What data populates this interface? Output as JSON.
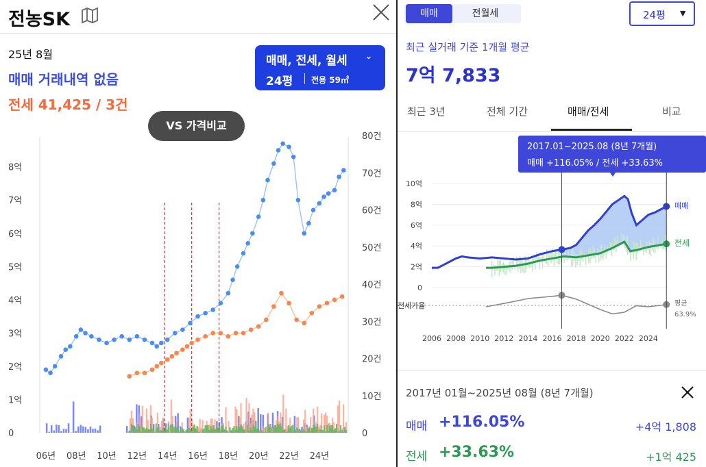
{
  "left": {
    "title": "전농SK",
    "date": "25년 8월",
    "sale_status": "매매 거래내역 없음",
    "jeonse_summary": "전세 41,425 / 3건",
    "type_selector": {
      "types": "매매, 전세, 월세",
      "size": "24평",
      "area": "전용 59㎡"
    },
    "compare_button": "VS 가격비교"
  },
  "right": {
    "trade_tabs": [
      "매매",
      "전월세"
    ],
    "size_select": "24평",
    "avg_label": "최근 실거래 기준 1개월 평균",
    "avg_value": "7억 7,833",
    "period_tabs": [
      "최근 3년",
      "전체 기간",
      "매매/전세",
      "비교"
    ],
    "tooltip": {
      "range": "2017.01~2025.08 (8년 7개월)",
      "values": "매매 +116.05%  /  전세 +33.63%"
    },
    "summary": {
      "range": "2017년 01월~2025년 08월 (8년 7개월)",
      "sale": {
        "label": "매매",
        "pct": "+116.05%",
        "amount": "+4억 1,808"
      },
      "jeonse": {
        "label": "전세",
        "pct": "+33.63%",
        "amount": "+1억 425"
      }
    }
  },
  "colors": {
    "sale": "#4a8ef0",
    "jeonse": "#f4864f",
    "accent": "#3f47d9",
    "sale_dark": "#2f3fd6",
    "jeonse_green": "#2d9a53"
  },
  "chart_data": [
    {
      "type": "scatter",
      "y_left_ticks": [
        "0",
        "1억",
        "2억",
        "3억",
        "4억",
        "5억",
        "6억",
        "7억",
        "8억"
      ],
      "y_right_ticks": [
        "0",
        "10건",
        "20건",
        "30건",
        "40건",
        "50건",
        "60건",
        "70건",
        "80건"
      ],
      "x_ticks": [
        "06년",
        "08년",
        "10년",
        "12년",
        "14년",
        "16년",
        "18년",
        "20년",
        "22년",
        "24년"
      ],
      "ylim": [
        0,
        8.9
      ],
      "series": [
        {
          "x": [
            2006.0,
            2006.3,
            2006.6,
            2007.0,
            2007.3,
            2007.6,
            2008.0,
            2008.3,
            2008.6,
            2009.0,
            2009.5,
            2010.0,
            2010.5,
            2011.0,
            2011.5,
            2012.0,
            2012.5,
            2013.0,
            2013.3,
            2013.6,
            2014.0,
            2014.5,
            2015.0,
            2015.5,
            2016.0,
            2016.5,
            2017.0,
            2017.5,
            2018.0,
            2018.3,
            2018.6,
            2019.0,
            2019.3,
            2019.6,
            2020.0,
            2020.3,
            2020.6,
            2021.0,
            2021.3,
            2021.6,
            2022.0,
            2022.3,
            2022.6,
            2023.0,
            2023.3,
            2023.6,
            2024.0,
            2024.3,
            2024.6,
            2025.0,
            2025.3,
            2025.6
          ],
          "y": [
            1.9,
            1.8,
            2.0,
            2.3,
            2.5,
            2.6,
            2.9,
            3.1,
            3.0,
            2.9,
            2.8,
            2.7,
            2.8,
            2.9,
            2.8,
            2.9,
            2.8,
            2.7,
            2.6,
            2.7,
            2.8,
            3.0,
            3.1,
            3.3,
            3.5,
            3.6,
            3.7,
            3.9,
            4.2,
            4.6,
            5.0,
            5.4,
            5.7,
            6.0,
            6.5,
            7.0,
            7.6,
            8.1,
            8.5,
            8.7,
            8.6,
            8.3,
            7.0,
            6.0,
            6.3,
            6.7,
            6.9,
            7.1,
            7.2,
            7.3,
            7.7,
            7.9
          ]
        },
        {
          "x": [
            2011.5,
            2012.0,
            2012.5,
            2013.0,
            2013.3,
            2013.6,
            2014.0,
            2014.3,
            2014.6,
            2015.0,
            2015.3,
            2015.6,
            2016.0,
            2016.5,
            2017.0,
            2017.5,
            2018.0,
            2018.5,
            2019.0,
            2019.5,
            2020.0,
            2020.5,
            2021.0,
            2021.5,
            2022.0,
            2022.5,
            2023.0,
            2023.5,
            2024.0,
            2024.5,
            2025.0,
            2025.5
          ],
          "y": [
            1.7,
            1.8,
            1.8,
            1.9,
            2.0,
            2.1,
            2.2,
            2.3,
            2.4,
            2.5,
            2.6,
            2.7,
            2.8,
            2.9,
            3.0,
            3.0,
            2.9,
            3.0,
            3.0,
            3.1,
            3.2,
            3.4,
            3.8,
            4.2,
            3.9,
            3.4,
            3.3,
            3.6,
            3.8,
            3.9,
            4.0,
            4.1
          ]
        }
      ]
    },
    {
      "type": "area",
      "x_ticks": [
        "2006",
        "2008",
        "2010",
        "2012",
        "2014",
        "2016",
        "2018",
        "2020",
        "2022",
        "2024"
      ],
      "y_ticks": [
        "0",
        "2억",
        "4억",
        "6억",
        "8억",
        "10억"
      ],
      "ylim": [
        0,
        10
      ],
      "series": [
        {
          "name": "매매",
          "x": [
            2006.0,
            2006.5,
            2007.0,
            2007.5,
            2008.0,
            2008.5,
            2009.0,
            2010.0,
            2011.0,
            2012.0,
            2013.0,
            2014.0,
            2015.0,
            2016.0,
            2016.5,
            2017.0,
            2017.5,
            2018.0,
            2018.5,
            2019.0,
            2019.5,
            2020.0,
            2020.5,
            2021.0,
            2021.5,
            2022.0,
            2022.3,
            2022.6,
            2023.0,
            2023.5,
            2024.0,
            2024.5,
            2025.0,
            2025.5
          ],
          "y": [
            1.9,
            1.9,
            2.2,
            2.5,
            2.8,
            3.0,
            2.9,
            2.8,
            2.9,
            2.8,
            2.7,
            2.8,
            3.2,
            3.5,
            3.6,
            3.7,
            3.8,
            4.1,
            4.8,
            5.5,
            6.0,
            6.6,
            7.3,
            8.0,
            8.4,
            8.8,
            8.5,
            7.2,
            6.0,
            6.5,
            7.0,
            7.2,
            7.5,
            7.8
          ]
        },
        {
          "name": "전세",
          "x": [
            2010.5,
            2011.0,
            2012.0,
            2013.0,
            2014.0,
            2015.0,
            2016.0,
            2017.0,
            2018.0,
            2019.0,
            2020.0,
            2021.0,
            2022.0,
            2022.5,
            2023.0,
            2024.0,
            2025.0,
            2025.5
          ],
          "y": [
            1.9,
            1.9,
            2.0,
            2.1,
            2.3,
            2.6,
            2.8,
            3.0,
            2.9,
            3.1,
            3.3,
            3.8,
            4.4,
            3.5,
            3.6,
            3.9,
            4.1,
            4.2
          ]
        },
        {
          "name": "전세가율",
          "x": [
            2010.5,
            2012.0,
            2014.0,
            2016.0,
            2016.8,
            2018.0,
            2020.0,
            2021.0,
            2022.0,
            2023.0,
            2024.0,
            2025.5
          ],
          "y": [
            0.6,
            0.66,
            0.75,
            0.79,
            0.81,
            0.74,
            0.55,
            0.47,
            0.5,
            0.62,
            0.6,
            0.64
          ]
        }
      ],
      "labels": {
        "sale": "매매",
        "jeonse": "전세",
        "ratio": "전세가율",
        "avg": "평균",
        "avg_value": "63.9%"
      }
    }
  ]
}
